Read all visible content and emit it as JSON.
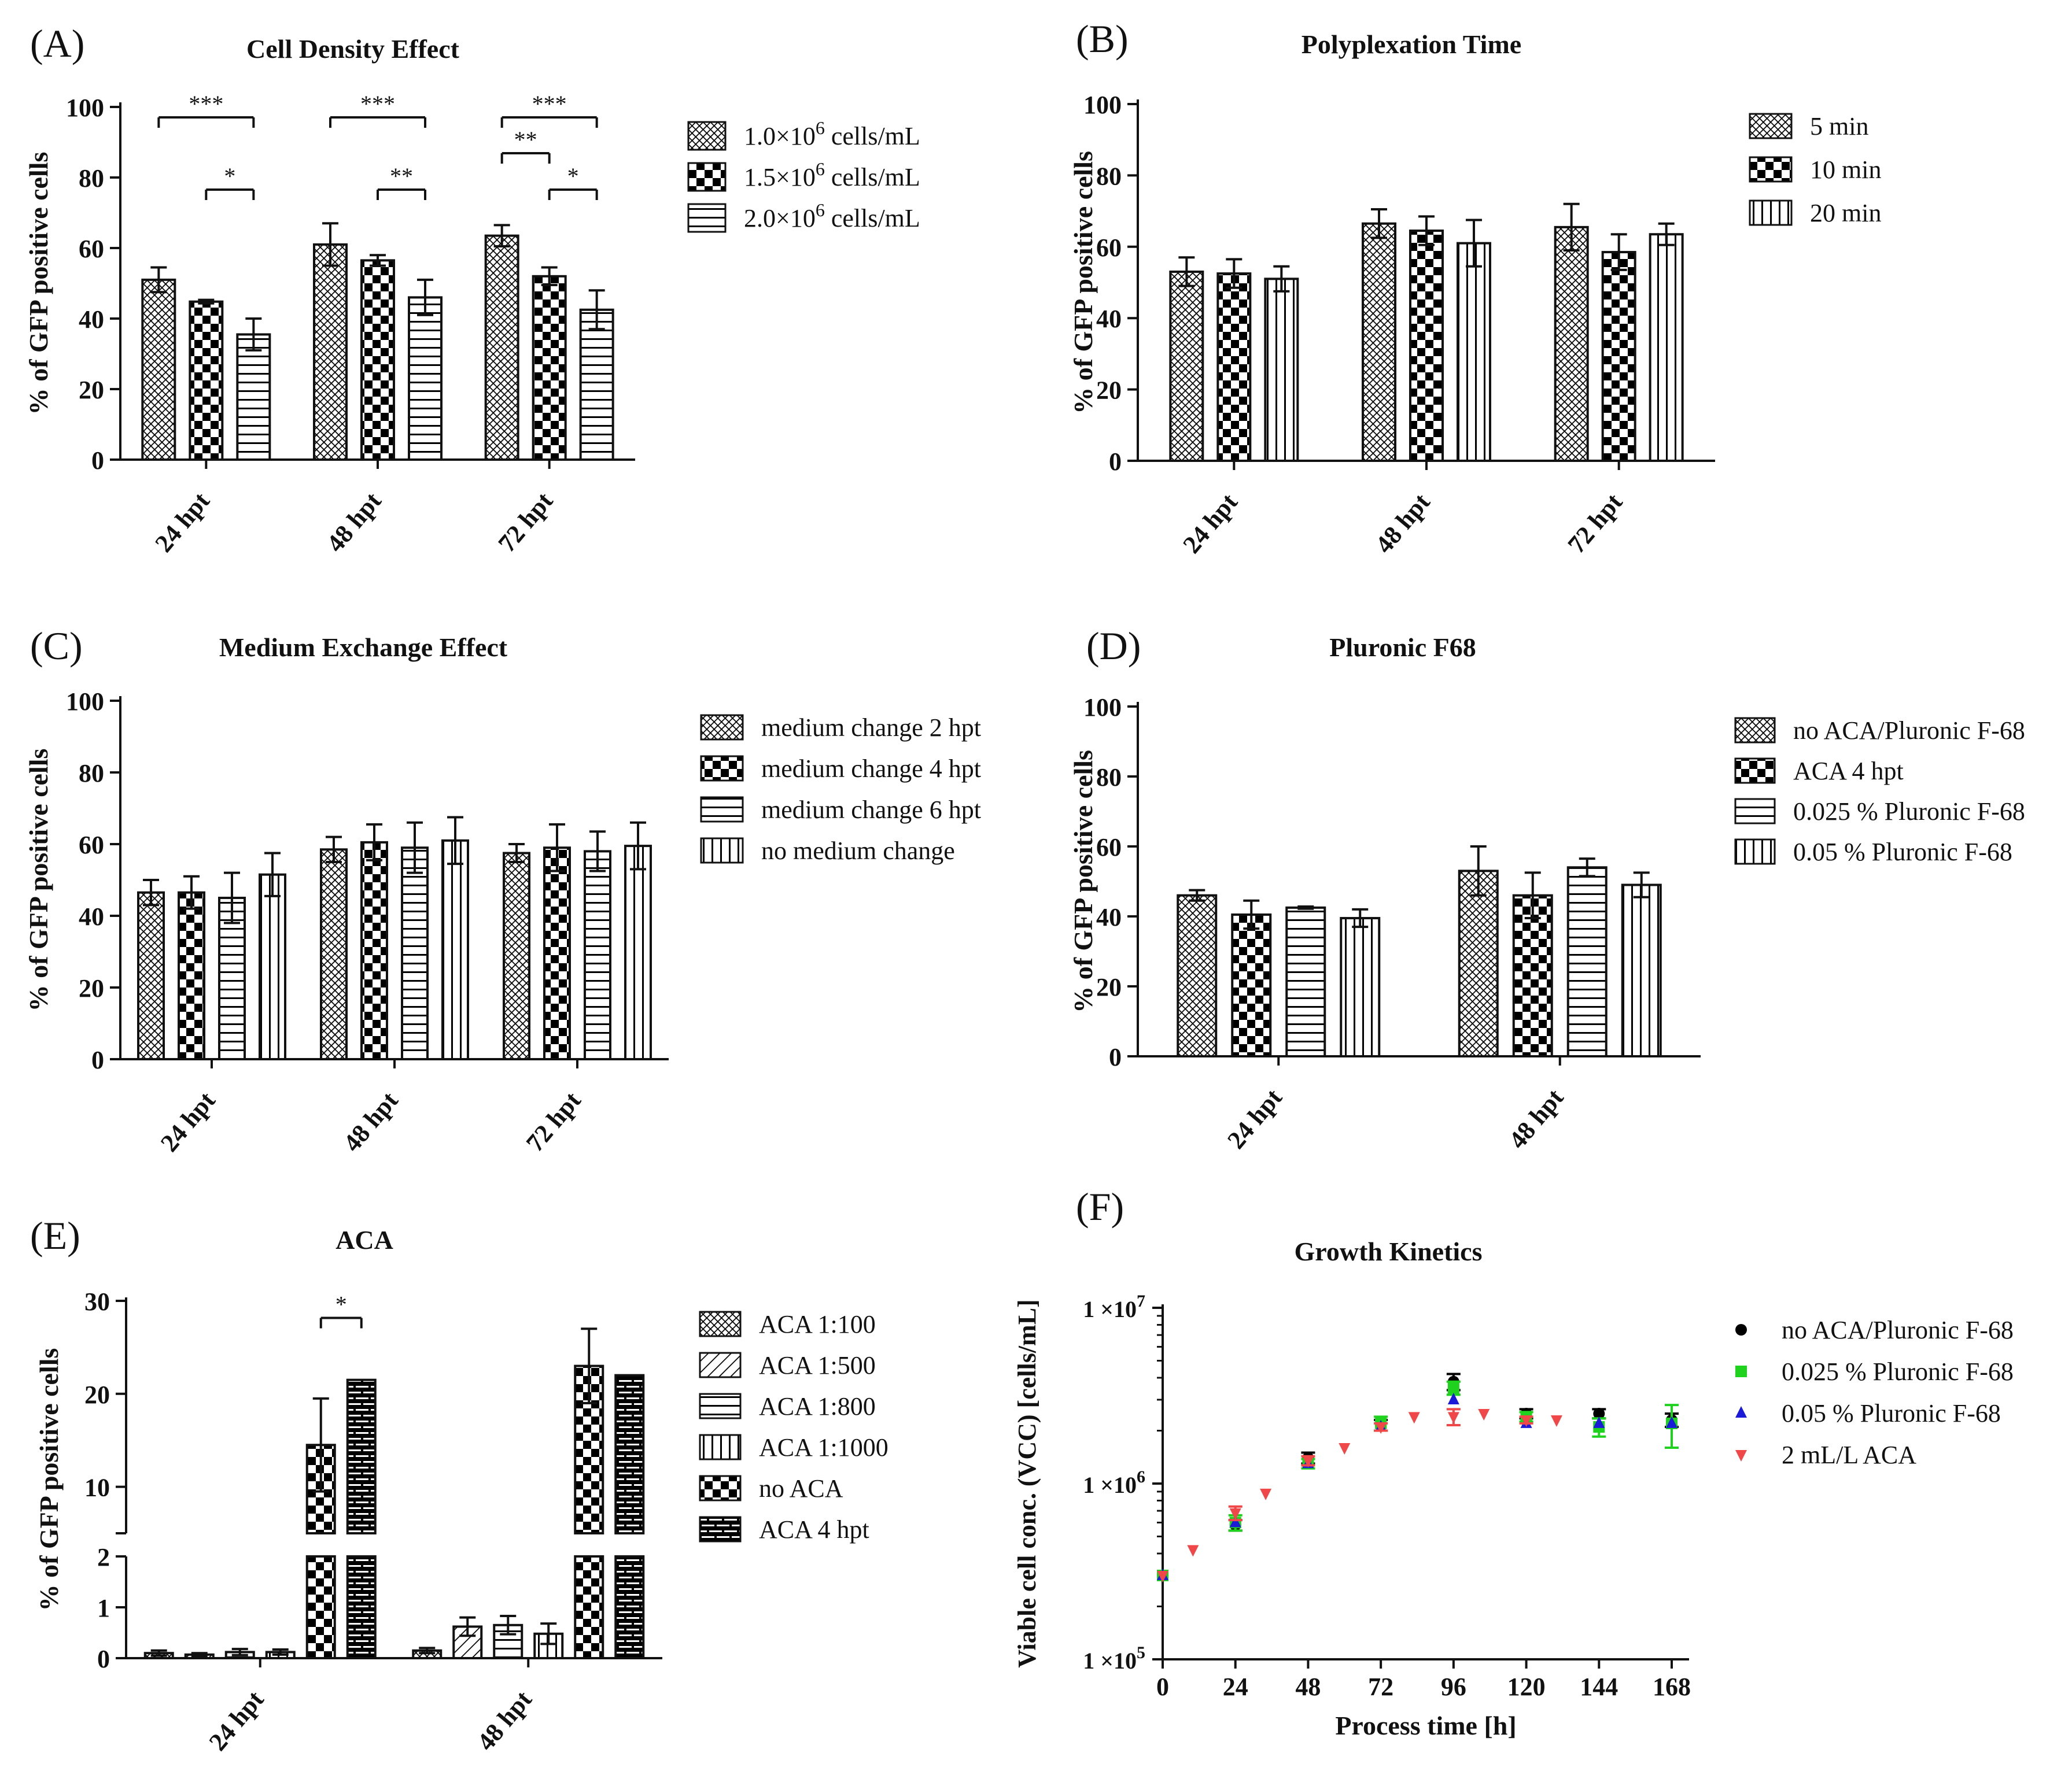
{
  "chart_data": [
    {
      "id": "A",
      "type": "bar",
      "panel_label": "(A)",
      "title": "Cell Density Effect",
      "ylabel": "% of GFP positive cells",
      "ylim": [
        0,
        100
      ],
      "yticks": [
        "0",
        "20",
        "40",
        "60",
        "80",
        "100"
      ],
      "categories": [
        "24 hpt",
        "48 hpt",
        "72 hpt"
      ],
      "series": [
        {
          "name": "1.0×10",
          "sup": "6",
          "tail": " cells/mL",
          "pattern": "p-dense",
          "values": [
            51,
            61,
            63.5
          ],
          "errors": [
            3.5,
            6,
            3
          ]
        },
        {
          "name": "1.5×10",
          "sup": "6",
          "tail": " cells/mL",
          "pattern": "p-check",
          "values": [
            44.8,
            56.5,
            52
          ],
          "errors": [
            0.5,
            1.5,
            2.5
          ]
        },
        {
          "name": "2.0×10",
          "sup": "6",
          "tail": " cells/mL",
          "pattern": "p-hlines",
          "values": [
            35.5,
            46,
            42.5
          ],
          "errors": [
            4.5,
            5,
            5.5
          ]
        }
      ],
      "significance": [
        {
          "cat": 0,
          "from": 0,
          "to": 2,
          "level": 1,
          "label": "***"
        },
        {
          "cat": 0,
          "from": 1,
          "to": 2,
          "level": 0,
          "label": "*"
        },
        {
          "cat": 1,
          "from": 0,
          "to": 2,
          "level": 1,
          "label": "***"
        },
        {
          "cat": 1,
          "from": 1,
          "to": 2,
          "level": 0,
          "label": "**"
        },
        {
          "cat": 2,
          "from": 0,
          "to": 2,
          "level": 2,
          "label": "***"
        },
        {
          "cat": 2,
          "from": 0,
          "to": 1,
          "level": 1,
          "label": "**"
        },
        {
          "cat": 2,
          "from": 1,
          "to": 2,
          "level": 0,
          "label": "*"
        }
      ]
    },
    {
      "id": "B",
      "type": "bar",
      "panel_label": "(B)",
      "title": "Polyplexation Time",
      "ylabel": "% of GFP positive cells",
      "ylim": [
        0,
        100
      ],
      "yticks": [
        "0",
        "20",
        "40",
        "60",
        "80",
        "100"
      ],
      "categories": [
        "24 hpt",
        "48 hpt",
        "72 hpt"
      ],
      "series": [
        {
          "name": "5 min",
          "pattern": "p-dense",
          "values": [
            53,
            66.5,
            65.5
          ],
          "errors": [
            4,
            4,
            6.5
          ]
        },
        {
          "name": "10 min",
          "pattern": "p-check",
          "values": [
            52.5,
            64.5,
            58.5
          ],
          "errors": [
            4,
            4,
            5
          ]
        },
        {
          "name": "20 min",
          "pattern": "p-vlines",
          "values": [
            51,
            61,
            63.5
          ],
          "errors": [
            3.5,
            6.5,
            3
          ]
        }
      ]
    },
    {
      "id": "C",
      "type": "bar",
      "panel_label": "(C)",
      "title": "Medium Exchange Effect",
      "ylabel": "% of GFP positive cells",
      "ylim": [
        0,
        100
      ],
      "yticks": [
        "0",
        "20",
        "40",
        "60",
        "80",
        "100"
      ],
      "categories": [
        "24 hpt",
        "48 hpt",
        "72 hpt"
      ],
      "series": [
        {
          "name": "medium change 2 hpt",
          "pattern": "p-dense",
          "values": [
            46.5,
            58.5,
            57.5
          ],
          "errors": [
            3.5,
            3.5,
            2.5
          ]
        },
        {
          "name": "medium change 4 hpt",
          "pattern": "p-check",
          "values": [
            46.5,
            60.5,
            59
          ],
          "errors": [
            4.5,
            5,
            6.5
          ]
        },
        {
          "name": "medium change 6 hpt",
          "pattern": "p-hlines",
          "values": [
            45,
            59,
            58
          ],
          "errors": [
            7,
            7,
            5.5
          ]
        },
        {
          "name": "no medium change",
          "pattern": "p-vlines",
          "values": [
            51.5,
            61,
            59.5
          ],
          "errors": [
            6,
            6.5,
            6.5
          ]
        }
      ]
    },
    {
      "id": "D",
      "type": "bar",
      "panel_label": "(D)",
      "title": "Pluronic F68",
      "ylabel": "% of GFP positive cells",
      "ylim": [
        0,
        100
      ],
      "yticks": [
        "0",
        "20",
        "40",
        "60",
        "80",
        "100"
      ],
      "categories": [
        "24 hpt",
        "48 hpt"
      ],
      "series": [
        {
          "name": "no ACA/Pluronic F-68",
          "pattern": "p-dense",
          "values": [
            46,
            53
          ],
          "errors": [
            1.5,
            7
          ]
        },
        {
          "name": "ACA 4 hpt",
          "pattern": "p-check",
          "values": [
            40.5,
            46
          ],
          "errors": [
            4,
            6.5
          ]
        },
        {
          "name": "0.025 % Pluronic F-68",
          "pattern": "p-hlines",
          "values": [
            42.5,
            54
          ],
          "errors": [
            0.3,
            2.5
          ]
        },
        {
          "name": "0.05 % Pluronic F-68",
          "pattern": "p-vlines",
          "values": [
            39.5,
            49
          ],
          "errors": [
            2.5,
            3.5
          ]
        }
      ]
    },
    {
      "id": "E",
      "type": "bar",
      "panel_label": "(E)",
      "title": "ACA",
      "ylabel": "% of GFP positive cells",
      "broken_axis": {
        "lower": [
          0,
          2
        ],
        "upper": [
          5,
          30
        ]
      },
      "yticks_lower": [
        "0",
        "1",
        "2"
      ],
      "yticks_upper": [
        "10",
        "20",
        "30"
      ],
      "categories": [
        "24 hpt",
        "48 hpt"
      ],
      "series": [
        {
          "name": "ACA 1:100",
          "pattern": "p-dense",
          "values": [
            0.1,
            0.15
          ],
          "errors": [
            0.05,
            0.05
          ]
        },
        {
          "name": "ACA 1:500",
          "pattern": "p-diag",
          "values": [
            0.07,
            0.62
          ],
          "errors": [
            0.03,
            0.18
          ]
        },
        {
          "name": "ACA 1:800",
          "pattern": "p-hlines",
          "values": [
            0.12,
            0.65
          ],
          "errors": [
            0.06,
            0.18
          ]
        },
        {
          "name": "ACA 1:1000",
          "pattern": "p-vlines",
          "values": [
            0.12,
            0.48
          ],
          "errors": [
            0.05,
            0.2
          ]
        },
        {
          "name": "no ACA",
          "pattern": "p-check",
          "values": [
            14.5,
            23
          ],
          "errors": [
            5,
            4
          ]
        },
        {
          "name": "ACA 4 hpt",
          "pattern": "p-brick",
          "values": [
            21.5,
            22
          ],
          "errors": [
            0,
            0
          ]
        }
      ],
      "significance": [
        {
          "cat": 0,
          "from": 4,
          "to": 5,
          "value": 21.2,
          "label": "*"
        }
      ]
    },
    {
      "id": "F",
      "type": "scatter",
      "panel_label": "(F)",
      "title": "Growth Kinetics",
      "xlabel": "Process time [h]",
      "ylabel": "Viable cell conc. (VCC) [cells/mL]",
      "yscale": "log",
      "ylim": [
        100000,
        10000000
      ],
      "yticks": [
        {
          "base": "1 ×10",
          "exp": "5",
          "value": 100000
        },
        {
          "base": "1 ×10",
          "exp": "6",
          "value": 1000000
        },
        {
          "base": "1 ×10",
          "exp": "7",
          "value": 10000000
        }
      ],
      "xlim": [
        0,
        168
      ],
      "xticks": [
        "0",
        "24",
        "48",
        "72",
        "96",
        "120",
        "144",
        "168"
      ],
      "series": [
        {
          "name": "no ACA/Pluronic F-68",
          "marker": "circle",
          "color": "#000000",
          "x": [
            0,
            24,
            48,
            72,
            96,
            120,
            144,
            168
          ],
          "y": [
            300000,
            580000,
            1400000,
            2150000,
            3800000,
            2500000,
            2500000,
            2300000
          ],
          "err": [
            0,
            40000,
            100000,
            150000,
            400000,
            150000,
            150000,
            200000
          ]
        },
        {
          "name": "0.025 % Pluronic F-68",
          "marker": "square",
          "color": "#1ed21e",
          "x": [
            0,
            24,
            48,
            72,
            96,
            120,
            144,
            168
          ],
          "y": [
            300000,
            600000,
            1300000,
            2200000,
            3500000,
            2400000,
            2100000,
            2200000
          ],
          "err": [
            0,
            60000,
            80000,
            200000,
            300000,
            150000,
            250000,
            600000
          ]
        },
        {
          "name": "0.05 % Pluronic F-68",
          "marker": "triangle-up",
          "color": "#1a1ad8",
          "x": [
            0,
            24,
            48,
            72,
            96,
            120,
            144,
            168
          ],
          "y": [
            300000,
            600000,
            1300000,
            2100000,
            3000000,
            2200000,
            2200000,
            2200000
          ],
          "err": [
            0,
            0,
            0,
            0,
            0,
            0,
            0,
            0
          ]
        },
        {
          "name": "2 mL/L ACA",
          "marker": "triangle-down",
          "color": "#f04848",
          "x": [
            0,
            10,
            24,
            34,
            48,
            60,
            72,
            83,
            96,
            106,
            120,
            130
          ],
          "y": [
            300000,
            420000,
            680000,
            880000,
            1350000,
            1600000,
            2100000,
            2400000,
            2400000,
            2500000,
            2300000,
            2300000
          ],
          "err": [
            0,
            0,
            60000,
            0,
            80000,
            0,
            100000,
            0,
            250000,
            0,
            100000,
            0
          ]
        }
      ]
    }
  ]
}
